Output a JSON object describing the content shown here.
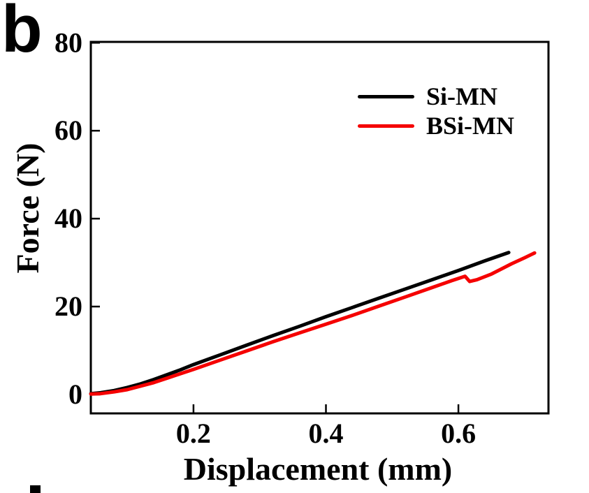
{
  "figure": {
    "panel_label": "b"
  },
  "chart_data": {
    "type": "line",
    "title": "",
    "xlabel": "Displacement (mm)",
    "ylabel": "Force (N)",
    "xlim": [
      0.045,
      0.736
    ],
    "ylim": [
      -4.3,
      80.2
    ],
    "xticks": [
      0.2,
      0.4,
      0.6
    ],
    "yticks": [
      0,
      20,
      40,
      60,
      80
    ],
    "grid": false,
    "legend_position": "top-right-inside",
    "axis_color": "#000000",
    "series": [
      {
        "name": "Si-MN",
        "color": "#000000",
        "x": [
          0.045,
          0.06,
          0.08,
          0.1,
          0.12,
          0.14,
          0.16,
          0.18,
          0.2,
          0.24,
          0.28,
          0.32,
          0.36,
          0.4,
          0.44,
          0.48,
          0.52,
          0.56,
          0.6,
          0.64,
          0.676
        ],
        "y": [
          0.2,
          0.4,
          0.9,
          1.6,
          2.4,
          3.4,
          4.5,
          5.6,
          6.8,
          9.0,
          11.2,
          13.4,
          15.5,
          17.7,
          19.8,
          21.9,
          24.0,
          26.1,
          28.2,
          30.4,
          32.3
        ]
      },
      {
        "name": "BSi-MN",
        "color": "#f50000",
        "x": [
          0.045,
          0.06,
          0.08,
          0.1,
          0.12,
          0.14,
          0.16,
          0.18,
          0.2,
          0.24,
          0.28,
          0.32,
          0.36,
          0.4,
          0.44,
          0.48,
          0.52,
          0.56,
          0.59,
          0.61,
          0.617,
          0.628,
          0.65,
          0.68,
          0.7,
          0.715
        ],
        "y": [
          0.1,
          0.2,
          0.6,
          1.1,
          1.9,
          2.7,
          3.7,
          4.7,
          5.7,
          7.8,
          9.9,
          12.0,
          14.0,
          16.0,
          18.0,
          20.1,
          22.2,
          24.3,
          25.9,
          26.9,
          25.7,
          26.1,
          27.4,
          29.7,
          31.1,
          32.2
        ]
      }
    ]
  }
}
